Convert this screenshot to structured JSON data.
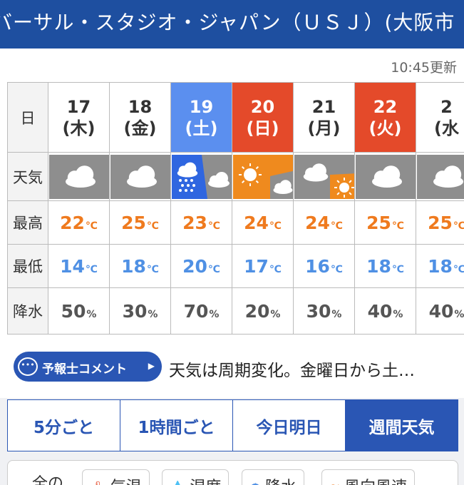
{
  "header": {
    "title": "ニバーサル・スタジオ・ジャパン（ＵＳＪ）(大阪市"
  },
  "updated": "10:45更新",
  "table": {
    "labels": {
      "day": "日",
      "weather": "天気",
      "max": "最高",
      "min": "最低",
      "rain": "降水"
    },
    "unit_temp": "℃",
    "unit_rain": "%",
    "days": [
      {
        "date": "17",
        "dow": "(木)",
        "type": "weekday",
        "icon": "cloudy-icon",
        "max": "22",
        "min": "14",
        "rain": "50"
      },
      {
        "date": "18",
        "dow": "(金)",
        "type": "weekday",
        "icon": "cloudy-icon",
        "max": "25",
        "min": "18",
        "rain": "30"
      },
      {
        "date": "19",
        "dow": "(土)",
        "type": "saturday",
        "icon": "rain-then-cloudy-icon",
        "max": "23",
        "min": "20",
        "rain": "70"
      },
      {
        "date": "20",
        "dow": "(日)",
        "type": "holiday",
        "icon": "sunny-then-cloudy-icon",
        "max": "24",
        "min": "17",
        "rain": "20"
      },
      {
        "date": "21",
        "dow": "(月)",
        "type": "weekday",
        "icon": "cloudy-then-sunny-icon",
        "max": "24",
        "min": "16",
        "rain": "30"
      },
      {
        "date": "22",
        "dow": "(火)",
        "type": "holiday",
        "icon": "cloudy-icon",
        "max": "25",
        "min": "18",
        "rain": "40"
      },
      {
        "date": "2",
        "dow": "(水",
        "type": "weekday",
        "icon": "cloudy-icon",
        "max": "25",
        "min": "18",
        "rain": "40"
      }
    ]
  },
  "comment": {
    "badge": "予報士コメント",
    "bubble": "•••",
    "arrow": "▶",
    "text": "天気は周期変化。金曜日から土…"
  },
  "tabs": [
    {
      "label": "5分ごと",
      "active": false
    },
    {
      "label": "1時間ごと",
      "active": false
    },
    {
      "label": "今日明日",
      "active": false
    },
    {
      "label": "週間天気",
      "active": true
    }
  ],
  "bottom": {
    "lead": "全の",
    "chips": [
      {
        "icon": "thermometer-icon",
        "glyph": "🌡",
        "label": "気温"
      },
      {
        "icon": "humidity-icon",
        "glyph": "💧",
        "label": "湿度"
      },
      {
        "icon": "umbrella-icon",
        "glyph": "☂",
        "label": "降水"
      },
      {
        "icon": "wind-icon",
        "glyph": "≋",
        "label": "風向風速"
      }
    ]
  },
  "colors": {
    "brand": "#2a56b4",
    "saturday": "#5b8fef",
    "holiday": "#e44a2a",
    "max": "#ef7a1e",
    "min": "#4f90e4"
  }
}
